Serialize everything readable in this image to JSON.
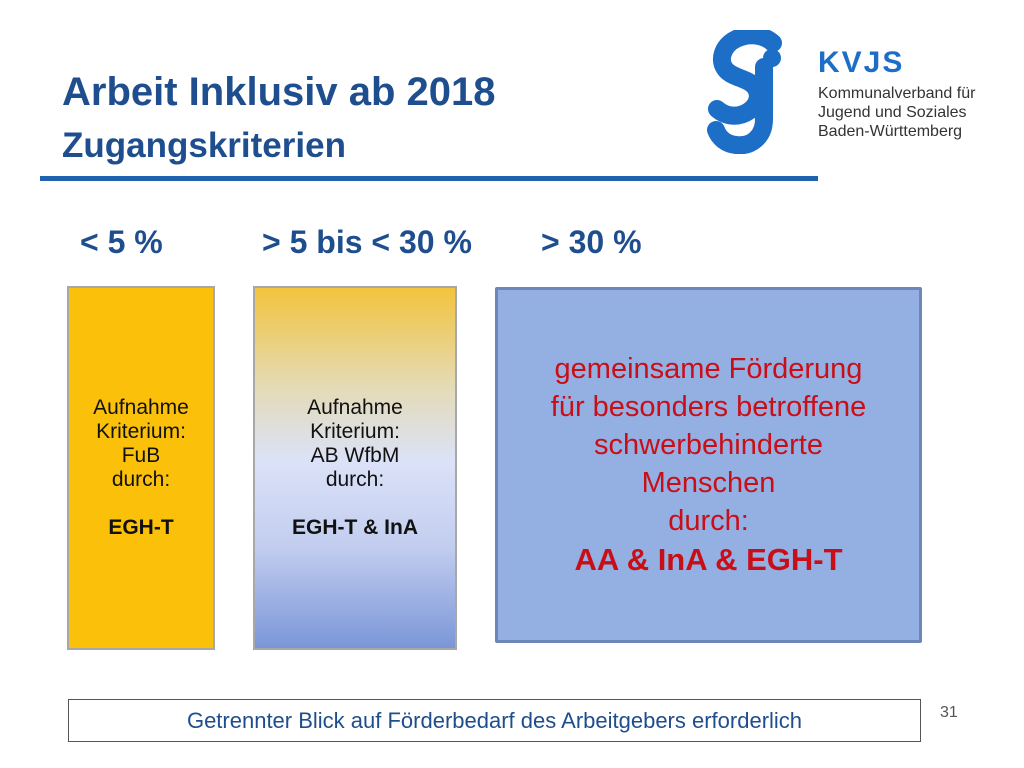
{
  "header": {
    "title": "Arbeit Inklusiv ab 2018",
    "subtitle": "Zugangskriterien"
  },
  "logo": {
    "name": "KVJS",
    "lines": [
      "Kommunalverband für",
      "Jugend und Soziales",
      "Baden-Württemberg"
    ],
    "color": "#1d6ec7"
  },
  "ranges": [
    "< 5 %",
    "> 5 bis < 30 %",
    "> 30 %"
  ],
  "boxes": [
    {
      "lines": [
        "Aufnahme",
        "Kriterium:",
        "FuB",
        "durch:"
      ],
      "emphasis": "EGH-T",
      "color": "#fbc10a"
    },
    {
      "lines": [
        "Aufnahme",
        "Kriterium:",
        "AB WfbM",
        "durch:"
      ],
      "emphasis": "EGH-T & InA"
    },
    {
      "lines": [
        "gemeinsame Förderung",
        "für besonders betroffene",
        "schwerbehinderte",
        "Menschen",
        "durch:"
      ],
      "emphasis": "AA & InA & EGH-T",
      "color": "#94b0e3"
    }
  ],
  "footer": {
    "text": "Getrennter Blick auf Förderbedarf des Arbeitgebers erforderlich"
  },
  "page_number": "31",
  "colors": {
    "title": "#1f4e8f",
    "accent_red": "#c80f18"
  }
}
